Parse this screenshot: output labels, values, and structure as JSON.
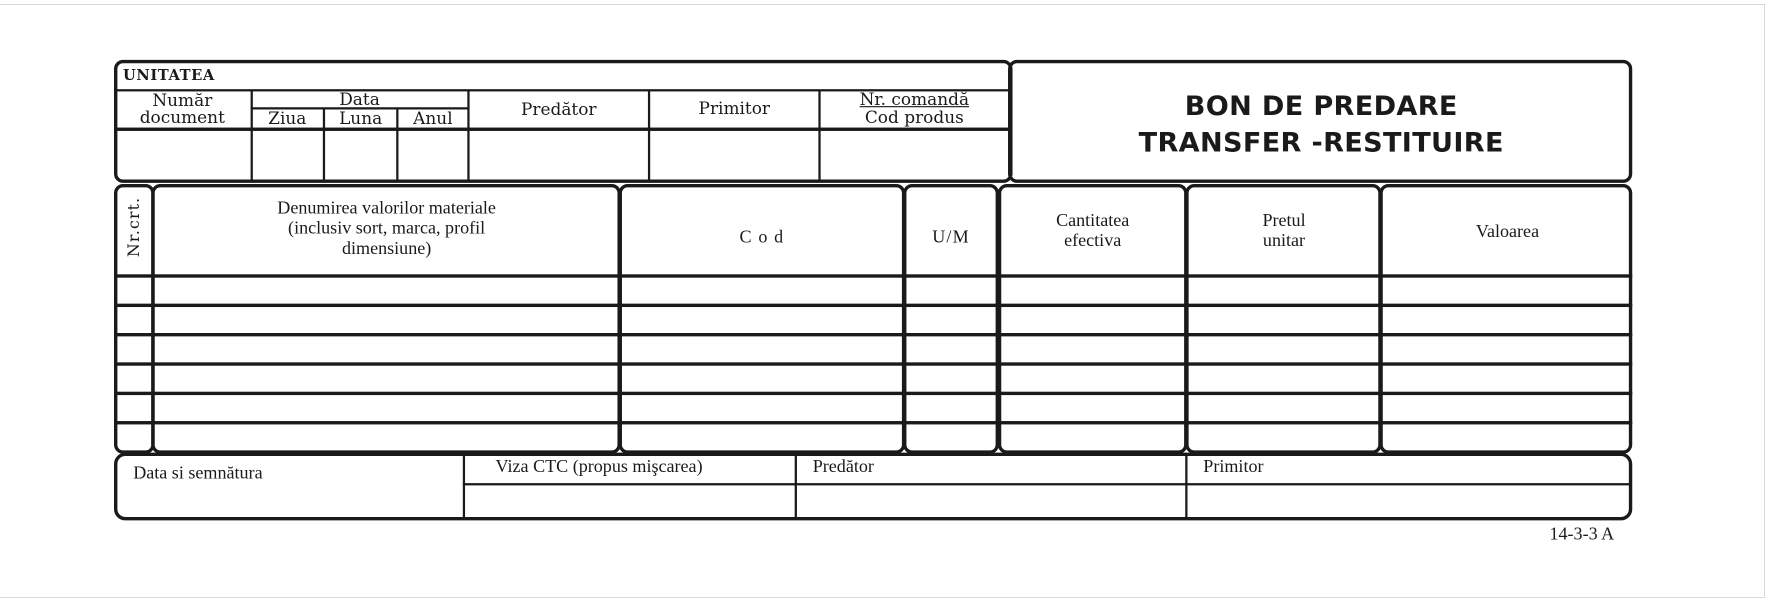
{
  "header": {
    "unit_label": "UNITATEA",
    "doc_number_label": "Număr document",
    "date_label": "Data",
    "day_label": "Ziua",
    "month_label": "Luna",
    "year_label": "Anul",
    "giver_label": "Predător",
    "receiver_label": "Primitor",
    "order_number_label": "Nr. comandă",
    "product_code_label": "Cod produs"
  },
  "title": {
    "line1": "BON DE PREDARE",
    "line2": "TRANSFER -RESTITUIRE"
  },
  "table": {
    "columns": [
      "Nr.crt.",
      "Denumirea valorilor materiale (inclusiv sort, marca, profil dimensiune)",
      "C o d",
      "U/M",
      "Cantitatea efectiva",
      "Pretul unitar",
      "Valoarea"
    ],
    "column_lines": {
      "name": [
        "Denumirea valorilor materiale",
        "(inclusiv sort, marca, profil",
        "dimensiune)"
      ],
      "quantity": [
        "Cantitatea",
        "efectiva"
      ],
      "price": [
        "Pretul",
        "unitar"
      ]
    },
    "rows": [
      [],
      [],
      [],
      [],
      [],
      []
    ]
  },
  "footer": {
    "date_signature_label": "Data si semnătura",
    "ctc_label": "Viza CTC (propus mişcarea)",
    "giver_label": "Predător",
    "receiver_label": "Primitor"
  },
  "form_code": "14-3-3 A"
}
